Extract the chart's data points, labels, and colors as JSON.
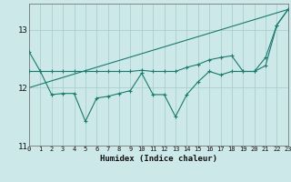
{
  "xlabel": "Humidex (Indice chaleur)",
  "bg_color": "#cce8e8",
  "grid_color": "#aacece",
  "line_color": "#1a7a6e",
  "x": [
    0,
    1,
    2,
    3,
    4,
    5,
    6,
    7,
    8,
    9,
    10,
    11,
    12,
    13,
    14,
    15,
    16,
    17,
    18,
    19,
    20,
    21,
    22,
    23
  ],
  "line1": [
    12.62,
    12.28,
    11.88,
    11.9,
    11.9,
    11.42,
    11.82,
    11.85,
    11.9,
    11.95,
    12.25,
    11.88,
    11.88,
    11.5,
    11.88,
    12.1,
    12.28,
    12.22,
    12.28,
    12.28,
    12.28,
    12.38,
    13.08,
    13.35
  ],
  "line2": [
    12.28,
    12.28,
    12.28,
    12.28,
    12.28,
    12.28,
    12.28,
    12.28,
    12.28,
    12.28,
    12.3,
    12.28,
    12.28,
    12.28,
    12.35,
    12.4,
    12.48,
    12.52,
    12.55,
    12.28,
    12.28,
    12.52,
    13.08,
    13.35
  ],
  "line3_x": [
    0,
    23
  ],
  "line3_y": [
    12.0,
    13.35
  ],
  "xlim": [
    0,
    23
  ],
  "ylim": [
    11.0,
    13.45
  ],
  "yticks": [
    11,
    12,
    13
  ],
  "xticks": [
    0,
    1,
    2,
    3,
    4,
    5,
    6,
    7,
    8,
    9,
    10,
    11,
    12,
    13,
    14,
    15,
    16,
    17,
    18,
    19,
    20,
    21,
    22,
    23
  ]
}
